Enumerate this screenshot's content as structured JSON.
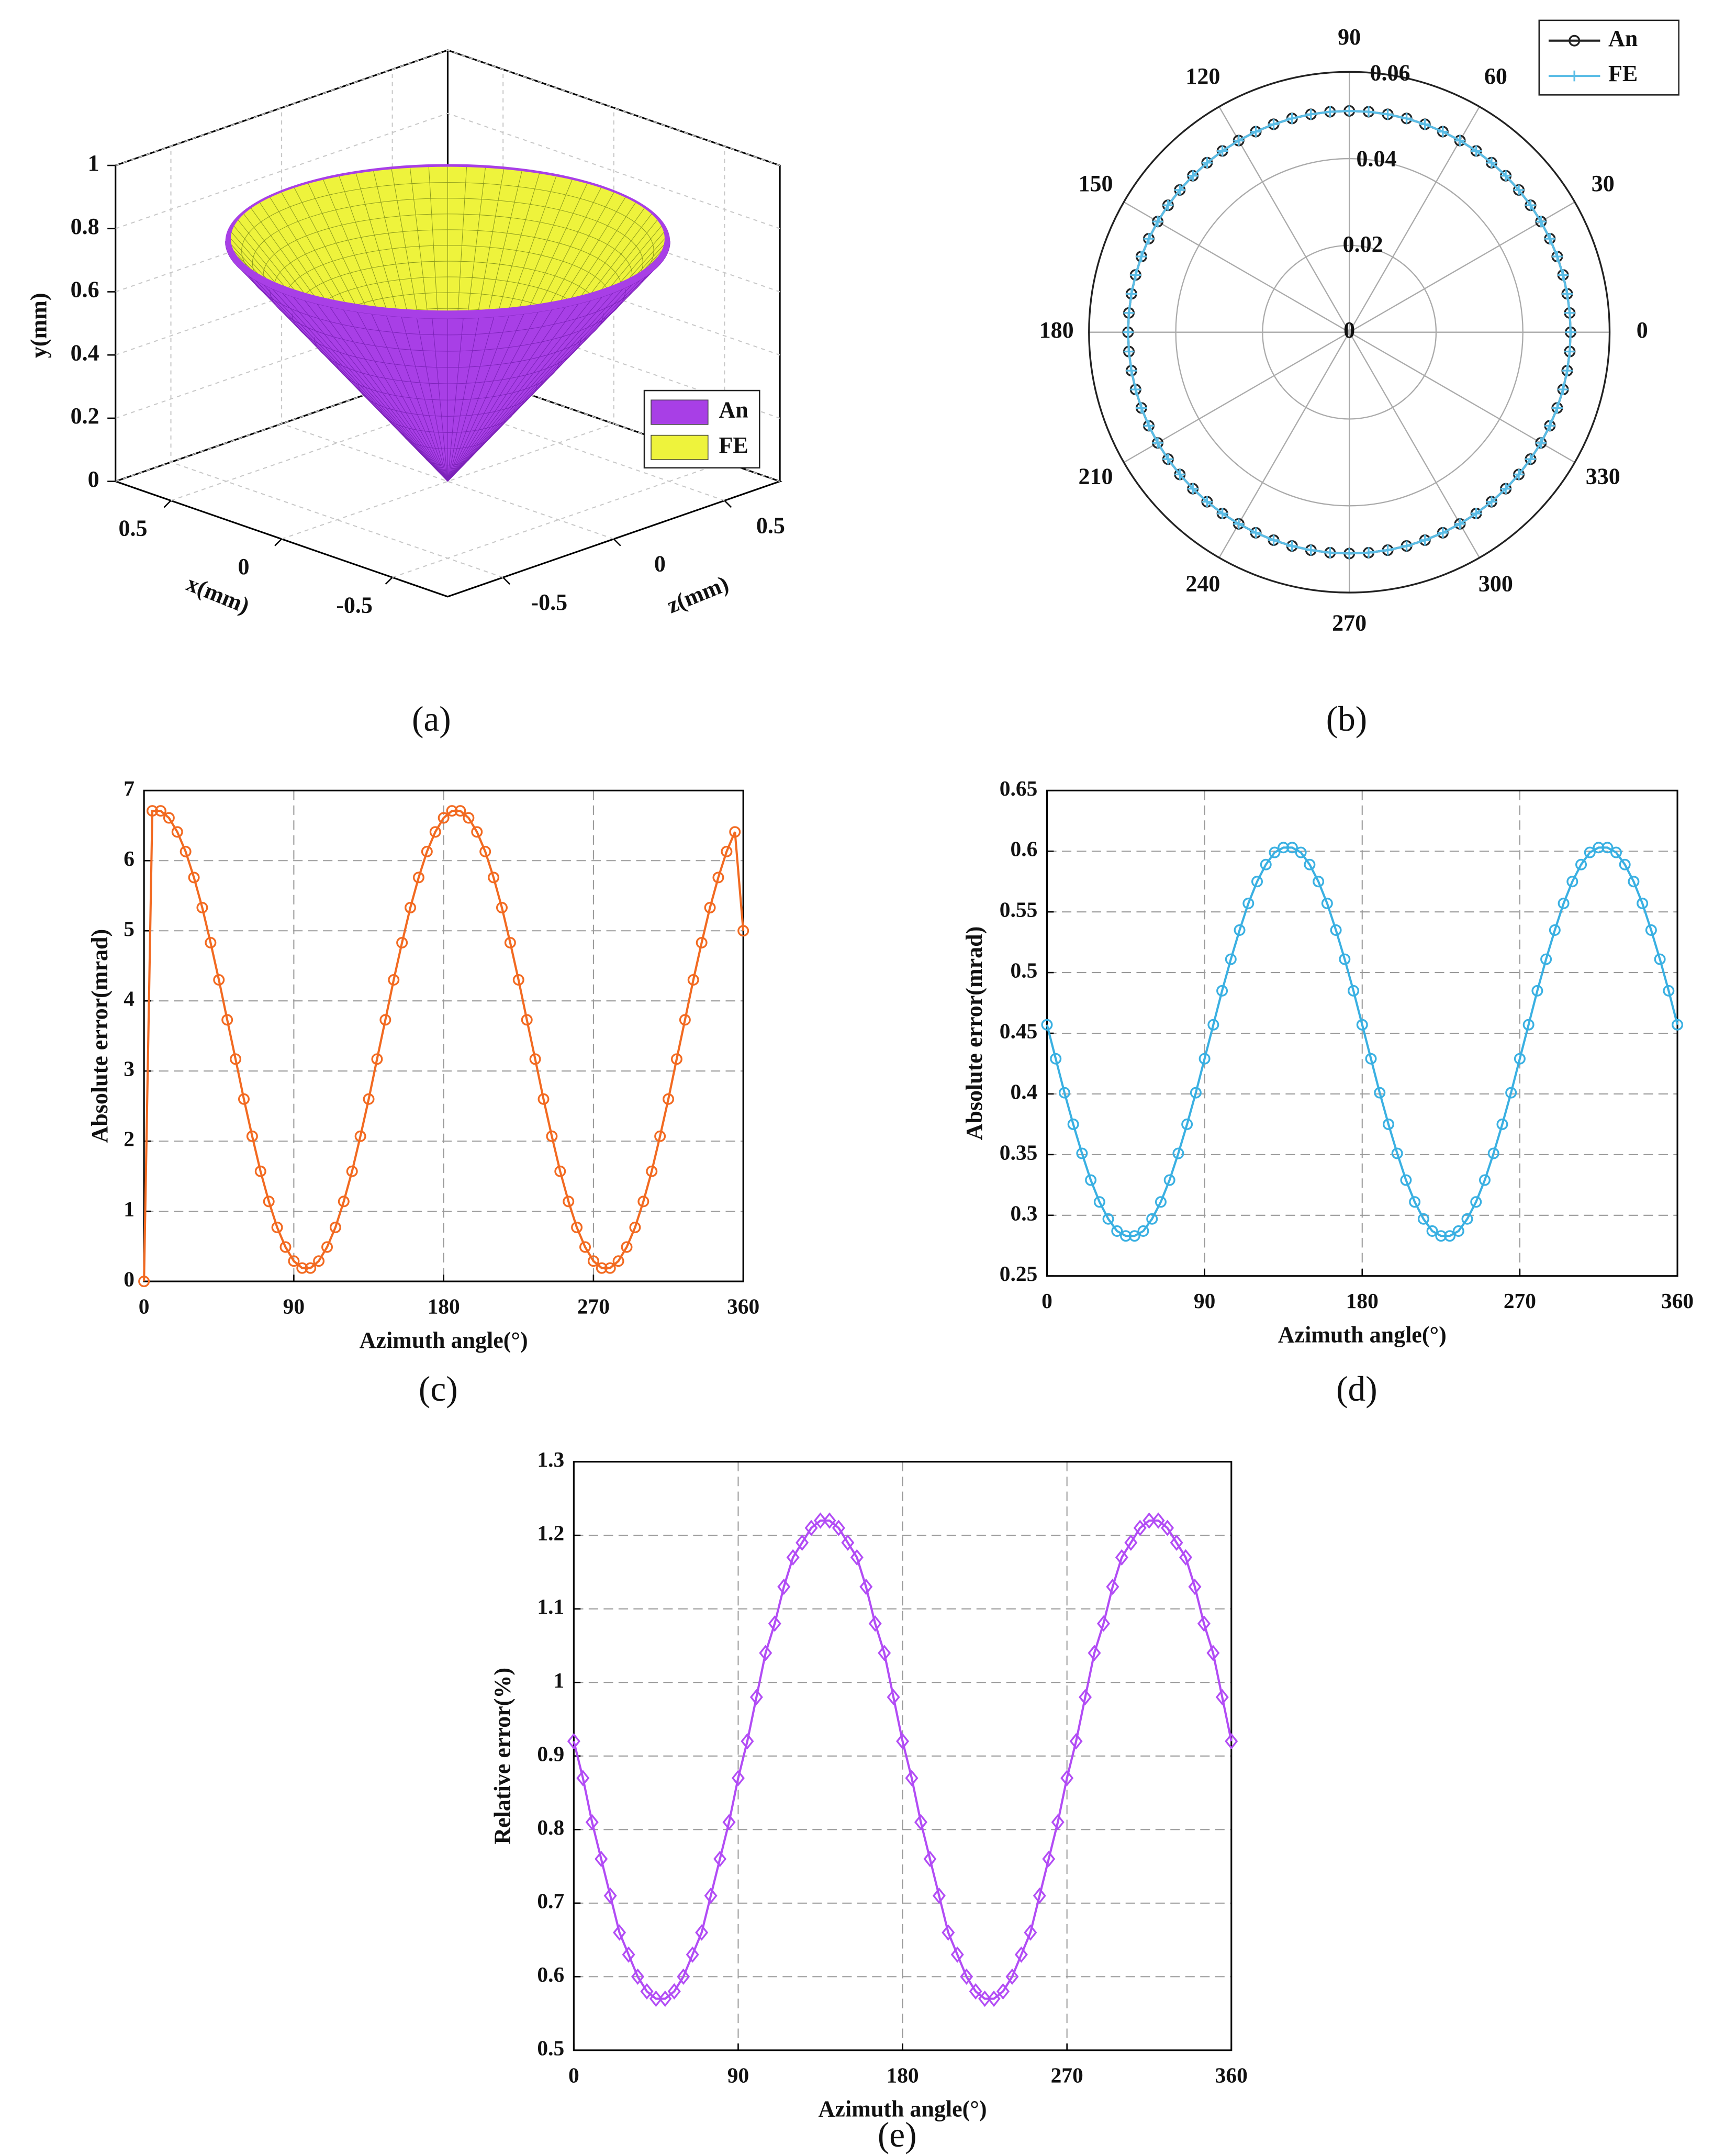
{
  "chart_data": [
    {
      "type": "surface3d",
      "caption": "(a)",
      "xlabel": "x(mm)",
      "ylabel": "y(mm)",
      "zlabel": "z(mm)",
      "xlim": [
        -0.75,
        0.75
      ],
      "xticks": [
        0.5,
        0,
        -0.5
      ],
      "ylim": [
        0,
        1
      ],
      "yticks": [
        0,
        0.2,
        0.4,
        0.6,
        0.8,
        1
      ],
      "zlim": [
        -0.75,
        0.75
      ],
      "zticks": [
        -0.5,
        0,
        0.5
      ],
      "series": [
        {
          "name": "An",
          "color": "#a83fe6"
        },
        {
          "name": "FE",
          "color": "#eef33c"
        }
      ],
      "legend": "right",
      "grid": true
    },
    {
      "type": "polar",
      "caption": "(b)",
      "theta": [
        0,
        5,
        10,
        15,
        20,
        25,
        30,
        35,
        40,
        45,
        50,
        55,
        60,
        65,
        70,
        75,
        80,
        85,
        90,
        95,
        100,
        105,
        110,
        115,
        120,
        125,
        130,
        135,
        140,
        145,
        150,
        155,
        160,
        165,
        170,
        175,
        180,
        185,
        190,
        195,
        200,
        205,
        210,
        215,
        220,
        225,
        230,
        235,
        240,
        245,
        250,
        255,
        260,
        265,
        270,
        275,
        280,
        285,
        290,
        295,
        300,
        305,
        310,
        315,
        320,
        325,
        330,
        335,
        340,
        345,
        350,
        355
      ],
      "rlim": [
        0,
        0.06
      ],
      "rticks": [
        0,
        0.02,
        0.04,
        0.06
      ],
      "thetaticks": [
        0,
        30,
        60,
        90,
        120,
        150,
        180,
        210,
        240,
        270,
        300,
        330
      ],
      "series": [
        {
          "name": "An",
          "color": "#222222",
          "marker": "circle",
          "values": [
            0.051,
            0.051,
            0.051,
            0.051,
            0.051,
            0.051,
            0.051,
            0.051,
            0.051,
            0.051,
            0.051,
            0.051,
            0.051,
            0.051,
            0.051,
            0.051,
            0.051,
            0.051,
            0.051,
            0.051,
            0.051,
            0.051,
            0.051,
            0.051,
            0.051,
            0.051,
            0.051,
            0.051,
            0.051,
            0.051,
            0.051,
            0.051,
            0.051,
            0.051,
            0.051,
            0.051,
            0.051,
            0.051,
            0.051,
            0.051,
            0.051,
            0.051,
            0.051,
            0.051,
            0.051,
            0.051,
            0.051,
            0.051,
            0.051,
            0.051,
            0.051,
            0.051,
            0.051,
            0.051,
            0.051,
            0.051,
            0.051,
            0.051,
            0.051,
            0.051,
            0.051,
            0.051,
            0.051,
            0.051,
            0.051,
            0.051,
            0.051,
            0.051,
            0.051,
            0.051,
            0.051,
            0.051
          ]
        },
        {
          "name": "FE",
          "color": "#5bbde6",
          "marker": "plus",
          "values": [
            0.051,
            0.051,
            0.051,
            0.051,
            0.051,
            0.051,
            0.051,
            0.051,
            0.051,
            0.051,
            0.051,
            0.051,
            0.051,
            0.051,
            0.051,
            0.051,
            0.051,
            0.051,
            0.051,
            0.051,
            0.051,
            0.051,
            0.051,
            0.051,
            0.051,
            0.051,
            0.051,
            0.051,
            0.051,
            0.051,
            0.051,
            0.051,
            0.051,
            0.051,
            0.051,
            0.051,
            0.051,
            0.051,
            0.051,
            0.051,
            0.051,
            0.051,
            0.051,
            0.051,
            0.051,
            0.051,
            0.051,
            0.051,
            0.051,
            0.051,
            0.051,
            0.051,
            0.051,
            0.051,
            0.051,
            0.051,
            0.051,
            0.051,
            0.051,
            0.051,
            0.051,
            0.051,
            0.051,
            0.051,
            0.051,
            0.051,
            0.051,
            0.051,
            0.051,
            0.051,
            0.051,
            0.051
          ]
        }
      ],
      "legend": "upper right",
      "grid": true
    },
    {
      "type": "line",
      "caption": "(c)",
      "xlabel": "Azimuth angle(°)",
      "ylabel": "Absolute error(mrad)",
      "x": [
        0,
        5,
        10,
        15,
        20,
        25,
        30,
        35,
        40,
        45,
        50,
        55,
        60,
        65,
        70,
        75,
        80,
        85,
        90,
        95,
        100,
        105,
        110,
        115,
        120,
        125,
        130,
        135,
        140,
        145,
        150,
        155,
        160,
        165,
        170,
        175,
        180,
        185,
        190,
        195,
        200,
        205,
        210,
        215,
        220,
        225,
        230,
        235,
        240,
        245,
        250,
        255,
        260,
        265,
        270,
        275,
        280,
        285,
        290,
        295,
        300,
        305,
        310,
        315,
        320,
        325,
        330,
        335,
        340,
        345,
        350,
        355,
        360
      ],
      "series": [
        {
          "color": "#f26a21",
          "marker": "circle",
          "values": [
            0,
            6.71,
            6.71,
            6.61,
            6.41,
            6.13,
            5.76,
            5.33,
            4.83,
            4.3,
            3.73,
            3.17,
            2.6,
            2.07,
            1.57,
            1.14,
            0.77,
            0.49,
            0.29,
            0.19,
            0.19,
            0.29,
            0.49,
            0.77,
            1.14,
            1.57,
            2.07,
            2.6,
            3.17,
            3.73,
            4.3,
            4.83,
            5.33,
            5.76,
            6.13,
            6.41,
            6.61,
            6.71,
            6.71,
            6.61,
            6.41,
            6.13,
            5.76,
            5.33,
            4.83,
            4.3,
            3.73,
            3.17,
            2.6,
            2.07,
            1.57,
            1.14,
            0.77,
            0.49,
            0.29,
            0.19,
            0.19,
            0.29,
            0.49,
            0.77,
            1.14,
            1.57,
            2.07,
            2.6,
            3.17,
            3.73,
            4.3,
            4.83,
            5.33,
            5.76,
            6.13,
            6.41,
            5
          ]
        }
      ],
      "xlim": [
        0,
        360
      ],
      "xticks": [
        0,
        90,
        180,
        270,
        360
      ],
      "ylim": [
        0,
        7
      ],
      "yticks": [
        0,
        1,
        2,
        3,
        4,
        5,
        6,
        7
      ],
      "grid": true
    },
    {
      "type": "line",
      "caption": "(d)",
      "xlabel": "Azimuth angle(°)",
      "ylabel": "Absolute error(mrad)",
      "x": [
        0,
        5,
        10,
        15,
        20,
        25,
        30,
        35,
        40,
        45,
        50,
        55,
        60,
        65,
        70,
        75,
        80,
        85,
        90,
        95,
        100,
        105,
        110,
        115,
        120,
        125,
        130,
        135,
        140,
        145,
        150,
        155,
        160,
        165,
        170,
        175,
        180,
        185,
        190,
        195,
        200,
        205,
        210,
        215,
        220,
        225,
        230,
        235,
        240,
        245,
        250,
        255,
        260,
        265,
        270,
        275,
        280,
        285,
        290,
        295,
        300,
        305,
        310,
        315,
        320,
        325,
        330,
        335,
        340,
        345,
        350,
        355,
        360
      ],
      "series": [
        {
          "color": "#3ab0e2",
          "marker": "circle",
          "values": [
            0.457,
            0.429,
            0.401,
            0.375,
            0.351,
            0.329,
            0.311,
            0.297,
            0.287,
            0.283,
            0.283,
            0.287,
            0.297,
            0.311,
            0.329,
            0.351,
            0.375,
            0.401,
            0.429,
            0.457,
            0.485,
            0.511,
            0.535,
            0.557,
            0.575,
            0.589,
            0.599,
            0.603,
            0.603,
            0.599,
            0.589,
            0.575,
            0.557,
            0.535,
            0.511,
            0.485,
            0.457,
            0.429,
            0.401,
            0.375,
            0.351,
            0.329,
            0.311,
            0.297,
            0.287,
            0.283,
            0.283,
            0.287,
            0.297,
            0.311,
            0.329,
            0.351,
            0.375,
            0.401,
            0.429,
            0.457,
            0.485,
            0.511,
            0.535,
            0.557,
            0.575,
            0.589,
            0.599,
            0.603,
            0.603,
            0.599,
            0.589,
            0.575,
            0.557,
            0.535,
            0.511,
            0.485,
            0.457
          ]
        }
      ],
      "xlim": [
        0,
        360
      ],
      "xticks": [
        0,
        90,
        180,
        270,
        360
      ],
      "ylim": [
        0.25,
        0.65
      ],
      "yticks": [
        0.25,
        0.3,
        0.35,
        0.4,
        0.45,
        0.5,
        0.55,
        0.6,
        0.65
      ],
      "grid": true
    },
    {
      "type": "line",
      "caption": "(e)",
      "xlabel": "Azimuth angle(°)",
      "ylabel": "Relative error(%)",
      "x": [
        0,
        5,
        10,
        15,
        20,
        25,
        30,
        35,
        40,
        45,
        50,
        55,
        60,
        65,
        70,
        75,
        80,
        85,
        90,
        95,
        100,
        105,
        110,
        115,
        120,
        125,
        130,
        135,
        140,
        145,
        150,
        155,
        160,
        165,
        170,
        175,
        180,
        185,
        190,
        195,
        200,
        205,
        210,
        215,
        220,
        225,
        230,
        235,
        240,
        245,
        250,
        255,
        260,
        265,
        270,
        275,
        280,
        285,
        290,
        295,
        300,
        305,
        310,
        315,
        320,
        325,
        330,
        335,
        340,
        345,
        350,
        355,
        360
      ],
      "series": [
        {
          "color": "#b24cf5",
          "marker": "diamond",
          "values": [
            0.92,
            0.87,
            0.81,
            0.76,
            0.71,
            0.66,
            0.63,
            0.6,
            0.58,
            0.57,
            0.57,
            0.58,
            0.6,
            0.63,
            0.66,
            0.71,
            0.76,
            0.81,
            0.87,
            0.92,
            0.98,
            1.04,
            1.08,
            1.13,
            1.17,
            1.19,
            1.21,
            1.22,
            1.22,
            1.21,
            1.19,
            1.17,
            1.13,
            1.08,
            1.04,
            0.98,
            0.92,
            0.87,
            0.81,
            0.76,
            0.71,
            0.66,
            0.63,
            0.6,
            0.58,
            0.57,
            0.57,
            0.58,
            0.6,
            0.63,
            0.66,
            0.71,
            0.76,
            0.81,
            0.87,
            0.92,
            0.98,
            1.04,
            1.08,
            1.13,
            1.17,
            1.19,
            1.21,
            1.22,
            1.22,
            1.21,
            1.19,
            1.17,
            1.13,
            1.08,
            1.04,
            0.98,
            0.92
          ]
        }
      ],
      "xlim": [
        0,
        360
      ],
      "xticks": [
        0,
        90,
        180,
        270,
        360
      ],
      "ylim": [
        0.5,
        1.3
      ],
      "yticks": [
        0.5,
        0.6,
        0.7,
        0.8,
        0.9,
        1,
        1.1,
        1.2,
        1.3
      ],
      "grid": true
    }
  ]
}
